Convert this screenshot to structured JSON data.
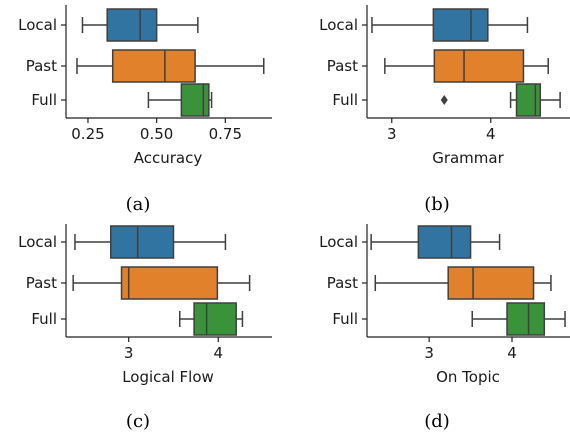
{
  "colors": {
    "Local": "#3274a1",
    "Past": "#e1812c",
    "Full": "#3a923a"
  },
  "chart_data": [
    {
      "type": "box",
      "panel": "(a)",
      "xlabel": "Accuracy",
      "xlim": [
        0.17,
        0.92
      ],
      "ticks": [
        0.25,
        0.5,
        0.75
      ],
      "tick_labels": [
        "0.25",
        "0.50",
        "0.75"
      ],
      "categories": [
        "Local",
        "Past",
        "Full"
      ],
      "boxes": [
        {
          "name": "Local",
          "min": 0.23,
          "q1": 0.32,
          "median": 0.44,
          "q3": 0.5,
          "max": 0.65,
          "outliers": []
        },
        {
          "name": "Past",
          "min": 0.21,
          "q1": 0.34,
          "median": 0.53,
          "q3": 0.64,
          "max": 0.89,
          "outliers": []
        },
        {
          "name": "Full",
          "min": 0.47,
          "q1": 0.59,
          "median": 0.67,
          "q3": 0.69,
          "max": 0.7,
          "outliers": []
        }
      ]
    },
    {
      "type": "box",
      "panel": "(b)",
      "xlabel": "Grammar",
      "xlim": [
        2.75,
        4.8
      ],
      "ticks": [
        3,
        4
      ],
      "tick_labels": [
        "3",
        "4"
      ],
      "categories": [
        "Local",
        "Past",
        "Full"
      ],
      "boxes": [
        {
          "name": "Local",
          "min": 2.8,
          "q1": 3.42,
          "median": 3.8,
          "q3": 3.97,
          "max": 4.37,
          "outliers": []
        },
        {
          "name": "Past",
          "min": 2.93,
          "q1": 3.43,
          "median": 3.73,
          "q3": 4.33,
          "max": 4.58,
          "outliers": []
        },
        {
          "name": "Full",
          "min": 4.2,
          "q1": 4.26,
          "median": 4.45,
          "q3": 4.5,
          "max": 4.7,
          "outliers": [
            3.53
          ]
        }
      ]
    },
    {
      "type": "box",
      "panel": "(c)",
      "xlabel": "Logical Flow",
      "xlim": [
        2.3,
        4.6
      ],
      "ticks": [
        3,
        4
      ],
      "tick_labels": [
        "3",
        "4"
      ],
      "categories": [
        "Local",
        "Past",
        "Full"
      ],
      "boxes": [
        {
          "name": "Local",
          "min": 2.4,
          "q1": 2.8,
          "median": 3.1,
          "q3": 3.5,
          "max": 4.08,
          "outliers": []
        },
        {
          "name": "Past",
          "min": 2.38,
          "q1": 2.92,
          "median": 3.0,
          "q3": 3.99,
          "max": 4.35,
          "outliers": []
        },
        {
          "name": "Full",
          "min": 3.57,
          "q1": 3.73,
          "median": 3.87,
          "q3": 4.2,
          "max": 4.27,
          "outliers": []
        }
      ]
    },
    {
      "type": "box",
      "panel": "(d)",
      "xlabel": "On Topic",
      "xlim": [
        2.25,
        4.7
      ],
      "ticks": [
        3,
        4
      ],
      "tick_labels": [
        "3",
        "4"
      ],
      "categories": [
        "Local",
        "Past",
        "Full"
      ],
      "boxes": [
        {
          "name": "Local",
          "min": 2.3,
          "q1": 2.87,
          "median": 3.27,
          "q3": 3.5,
          "max": 3.85,
          "outliers": []
        },
        {
          "name": "Past",
          "min": 2.35,
          "q1": 3.23,
          "median": 3.53,
          "q3": 4.26,
          "max": 4.47,
          "outliers": []
        },
        {
          "name": "Full",
          "min": 3.52,
          "q1": 3.94,
          "median": 4.2,
          "q3": 4.39,
          "max": 4.64,
          "outliers": []
        }
      ]
    }
  ]
}
